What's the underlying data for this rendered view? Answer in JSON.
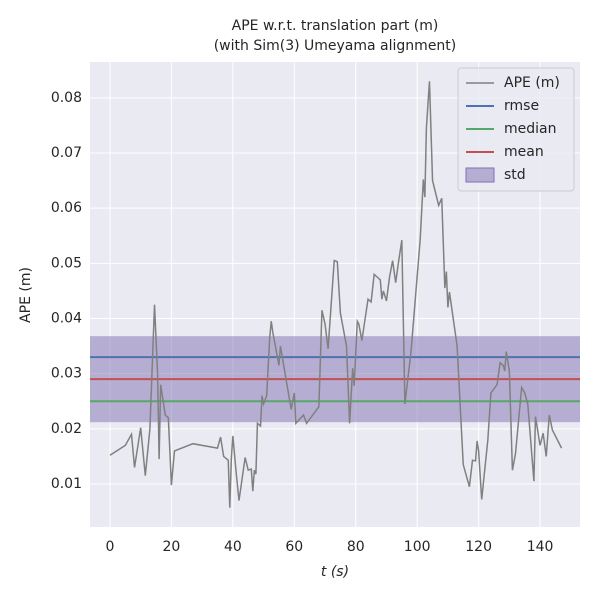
{
  "chart_data": {
    "type": "line",
    "title": [
      "APE w.r.t. translation part (m)",
      "(with Sim(3) Umeyama alignment)"
    ],
    "x_label": "t (s)",
    "y_label": "APE (m)",
    "xlim": [
      -6.5,
      153
    ],
    "ylim": [
      0.0022,
      0.0865
    ],
    "xticks": [
      0,
      20,
      40,
      60,
      80,
      100,
      120,
      140
    ],
    "yticks": [
      0.01,
      0.02,
      0.03,
      0.04,
      0.05,
      0.06,
      0.07,
      0.08
    ],
    "grid": true,
    "legend": "upper right",
    "series": [
      {
        "name": "APE (m)",
        "color": "#808080",
        "x": [
          0,
          5,
          7,
          8,
          10,
          11.5,
          13,
          14.5,
          15.5,
          16,
          16.5,
          18,
          19,
          20,
          21,
          27,
          35,
          36,
          37,
          38.5,
          39,
          39.5,
          40,
          41,
          42,
          44,
          45,
          46,
          46.5,
          47,
          47.5,
          48,
          49,
          49.5,
          50,
          51,
          52,
          52.5,
          53,
          55,
          55.5,
          57,
          59,
          60,
          60.5,
          63,
          64,
          68,
          69,
          70,
          71,
          73,
          74,
          75,
          77,
          78,
          79,
          79.5,
          80.5,
          81,
          82,
          84,
          85,
          86,
          87,
          88,
          88.5,
          89,
          90,
          91,
          92,
          93,
          94,
          95,
          96,
          98,
          101,
          102,
          102.5,
          103,
          104,
          105,
          107,
          108,
          109,
          109.5,
          110,
          110.5,
          113,
          115,
          117,
          118,
          119,
          119.5,
          120,
          121,
          123,
          124,
          126,
          127,
          128,
          128.5,
          129,
          130,
          131,
          132,
          134,
          135,
          136,
          138,
          138.5,
          140,
          141,
          142,
          143,
          144,
          147
        ],
        "values": [
          0.0152,
          0.017,
          0.019,
          0.013,
          0.0202,
          0.0115,
          0.02,
          0.0425,
          0.03,
          0.0145,
          0.028,
          0.0225,
          0.022,
          0.0098,
          0.016,
          0.0173,
          0.0165,
          0.0185,
          0.015,
          0.0143,
          0.0057,
          0.0145,
          0.0187,
          0.0125,
          0.007,
          0.0148,
          0.0125,
          0.0127,
          0.0087,
          0.0125,
          0.0118,
          0.021,
          0.0205,
          0.026,
          0.0245,
          0.026,
          0.0365,
          0.0395,
          0.0375,
          0.0315,
          0.035,
          0.03,
          0.0235,
          0.0265,
          0.021,
          0.0225,
          0.021,
          0.024,
          0.0415,
          0.039,
          0.0345,
          0.0505,
          0.0503,
          0.041,
          0.035,
          0.021,
          0.031,
          0.0278,
          0.0395,
          0.039,
          0.036,
          0.0435,
          0.043,
          0.048,
          0.0475,
          0.047,
          0.0435,
          0.045,
          0.0432,
          0.0475,
          0.0505,
          0.0465,
          0.0505,
          0.0542,
          0.0245,
          0.034,
          0.0545,
          0.0652,
          0.062,
          0.0745,
          0.083,
          0.065,
          0.0605,
          0.0618,
          0.0455,
          0.0485,
          0.042,
          0.0448,
          0.035,
          0.0135,
          0.0095,
          0.0143,
          0.0142,
          0.0178,
          0.016,
          0.0072,
          0.018,
          0.0265,
          0.028,
          0.032,
          0.0315,
          0.0305,
          0.034,
          0.0305,
          0.0125,
          0.0155,
          0.0275,
          0.0265,
          0.0245,
          0.0105,
          0.0222,
          0.017,
          0.0192,
          0.015,
          0.0225,
          0.0198,
          0.0165
        ]
      }
    ],
    "stats": [
      {
        "name": "rmse",
        "color": "#4c72b0",
        "value": 0.033
      },
      {
        "name": "median",
        "color": "#55a868",
        "value": 0.025
      },
      {
        "name": "mean",
        "color": "#c44e52",
        "value": 0.029
      }
    ],
    "std": {
      "name": "std",
      "color": "#8172b2",
      "value": 0.0078
    }
  }
}
